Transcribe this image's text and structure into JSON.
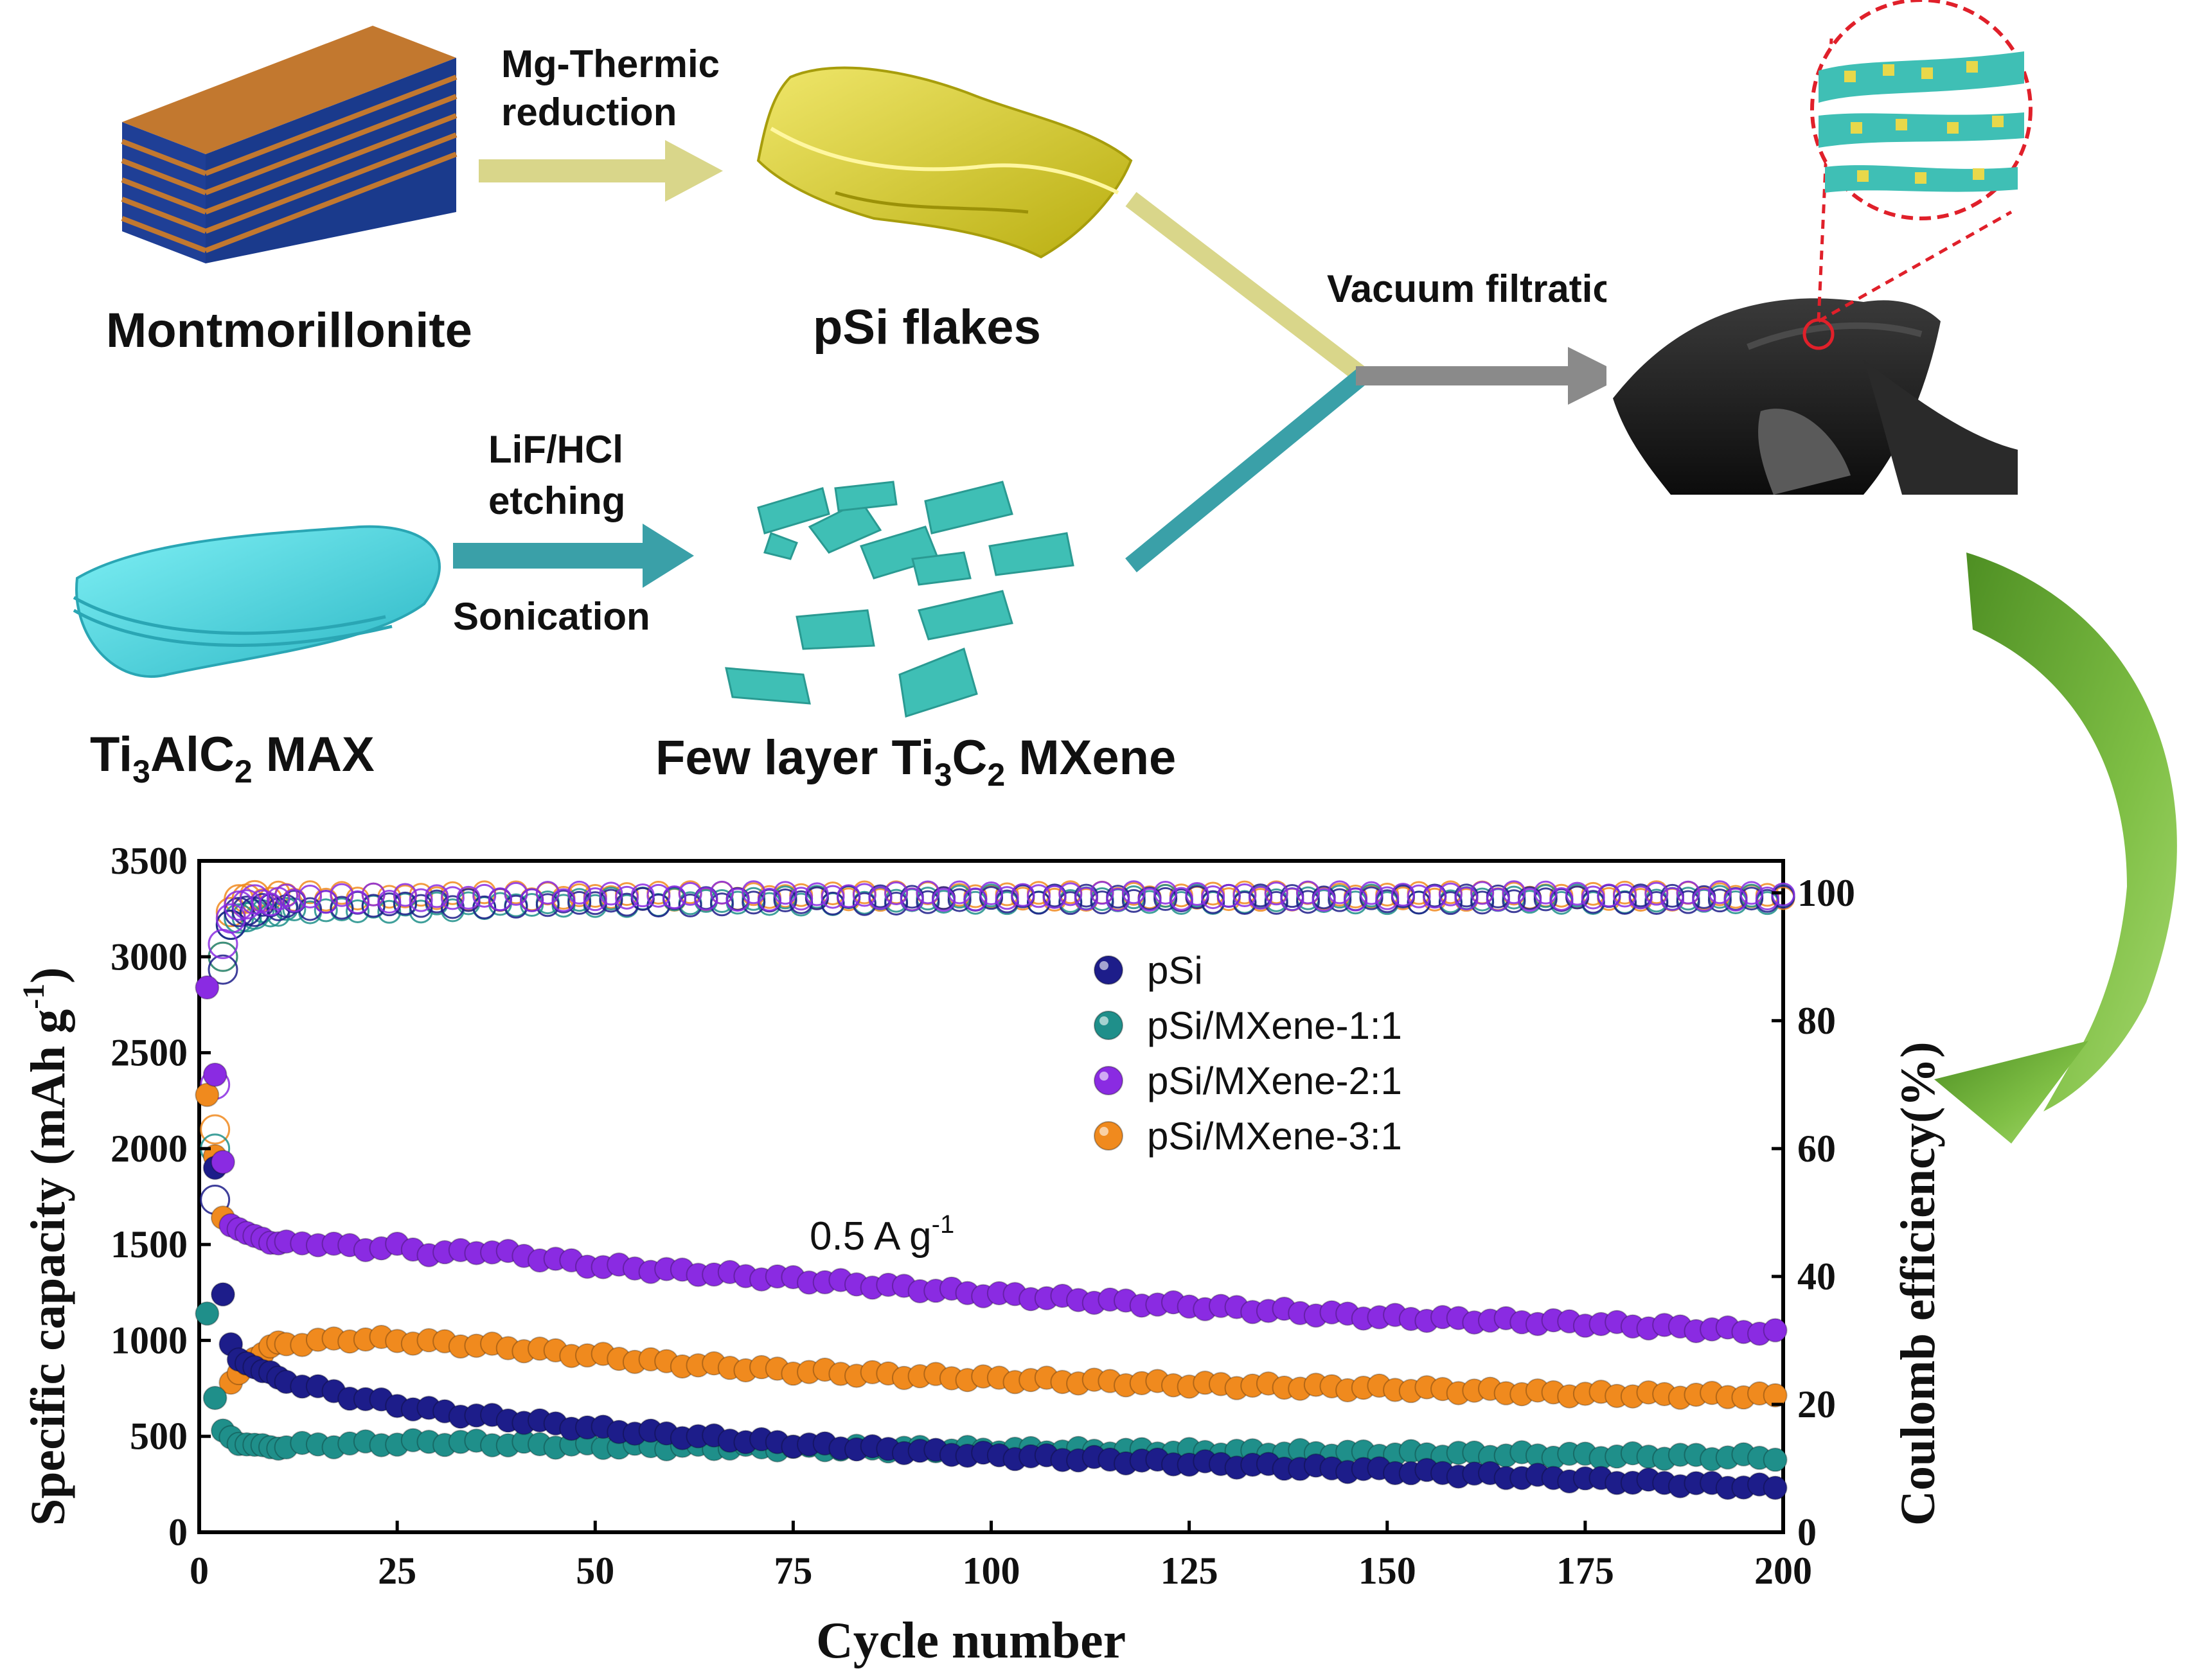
{
  "schematic": {
    "montmorillonite_label": "Montmorillonite",
    "step1_line1": "Mg-Thermic",
    "step1_line2": "reduction",
    "psi_label": "pSi flakes",
    "step2_line1": "LiF/HCl",
    "step2_line2": "etching",
    "step2_line3": "Sonication",
    "max_label_main": "Ti",
    "max_label_sub1": "3",
    "max_label_mid": "AlC",
    "max_label_sub2": "2",
    "max_label_end": " MAX",
    "mxene_prefix": "Few layer Ti",
    "mxene_sub1": "3",
    "mxene_mid": "C",
    "mxene_sub2": "2",
    "mxene_end": " MXene",
    "filtration_label": "Vacuum filtration"
  },
  "colors": {
    "montmorillonite_top": "#c2782f",
    "montmorillonite_layer": "#1a3a8c",
    "psi_yellow": "#d8cf2a",
    "arrow_khaki": "#d9d68a",
    "arrow_teal": "#3aa0a8",
    "mxene_teal": "#3fbfb5",
    "max_cyan": "#45d2dc",
    "film_black": "#1c1c1c",
    "arrow_gray": "#8a8a8a",
    "curved_arrow_green": "#6aab3a",
    "zoom_red": "#e0202a",
    "series_psi": "#1d1d8a",
    "series_11": "#1f8f8a",
    "series_21": "#8a2be2",
    "series_31": "#f08a1e"
  },
  "chart_data": {
    "type": "scatter",
    "title": "",
    "annotation_main": "0.5 A g",
    "annotation_sup": "-1",
    "xlabel": "Cycle number",
    "ylabel_main": "Specific capacity (mAh g",
    "ylabel_sup": "-1",
    "ylabel_end": ")",
    "y2label": "Coulomb efficiency(%)",
    "xlim": [
      0,
      200
    ],
    "ylim": [
      0,
      3500
    ],
    "y2lim": [
      0,
      105
    ],
    "x_ticks": [
      "0",
      "25",
      "50",
      "75",
      "100",
      "125",
      "150",
      "175",
      "200"
    ],
    "x_tick_values": [
      0,
      25,
      50,
      75,
      100,
      125,
      150,
      175,
      200
    ],
    "y_ticks": [
      "0",
      "500",
      "1000",
      "1500",
      "2000",
      "2500",
      "3000",
      "3500"
    ],
    "y_tick_values": [
      0,
      500,
      1000,
      1500,
      2000,
      2500,
      3000,
      3500
    ],
    "y2_ticks": [
      "0",
      "20",
      "40",
      "60",
      "80",
      "100"
    ],
    "y2_tick_values": [
      0,
      20,
      40,
      60,
      80,
      100
    ],
    "legend_position": "upper-center",
    "series": [
      {
        "name": "pSi",
        "color_key": "series_psi",
        "capacity": [
          [
            2,
            1900
          ],
          [
            3,
            1240
          ],
          [
            4,
            980
          ],
          [
            5,
            900
          ],
          [
            10,
            800
          ],
          [
            20,
            700
          ],
          [
            30,
            630
          ],
          [
            50,
            540
          ],
          [
            75,
            460
          ],
          [
            100,
            400
          ],
          [
            125,
            360
          ],
          [
            150,
            320
          ],
          [
            175,
            275
          ],
          [
            200,
            230
          ]
        ],
        "ce": [
          [
            2,
            52
          ],
          [
            3,
            88
          ],
          [
            4,
            95
          ],
          [
            5,
            97
          ],
          [
            10,
            98
          ],
          [
            50,
            98.5
          ],
          [
            100,
            99
          ],
          [
            150,
            99
          ],
          [
            200,
            99
          ]
        ]
      },
      {
        "name": "pSi/MXene-1:1",
        "color_key": "series_11",
        "capacity": [
          [
            1,
            1140
          ],
          [
            2,
            700
          ],
          [
            3,
            530
          ],
          [
            5,
            460
          ],
          [
            10,
            450
          ],
          [
            20,
            460
          ],
          [
            30,
            470
          ],
          [
            50,
            450
          ],
          [
            75,
            440
          ],
          [
            100,
            430
          ],
          [
            125,
            420
          ],
          [
            150,
            410
          ],
          [
            175,
            400
          ],
          [
            200,
            390
          ]
        ],
        "ce": [
          [
            2,
            60
          ],
          [
            3,
            90
          ],
          [
            4,
            95
          ],
          [
            5,
            96
          ],
          [
            10,
            97
          ],
          [
            50,
            98.5
          ],
          [
            100,
            99
          ],
          [
            150,
            99
          ],
          [
            200,
            99
          ]
        ]
      },
      {
        "name": "pSi/MXene-2:1",
        "color_key": "series_21",
        "capacity": [
          [
            1,
            2840
          ],
          [
            3,
            1930
          ],
          [
            4,
            1600
          ],
          [
            6,
            1560
          ],
          [
            10,
            1500
          ],
          [
            15,
            1510
          ],
          [
            20,
            1480
          ],
          [
            25,
            1490
          ],
          [
            30,
            1450
          ],
          [
            36,
            1470
          ],
          [
            50,
            1390
          ],
          [
            75,
            1320
          ],
          [
            100,
            1240
          ],
          [
            125,
            1180
          ],
          [
            150,
            1120
          ],
          [
            175,
            1090
          ],
          [
            200,
            1040
          ]
        ],
        "ce": [
          [
            2,
            70
          ],
          [
            3,
            92
          ],
          [
            4,
            96
          ],
          [
            5,
            98
          ],
          [
            10,
            99
          ],
          [
            50,
            99.5
          ],
          [
            100,
            99.5
          ],
          [
            150,
            99.5
          ],
          [
            200,
            99.5
          ]
        ]
      },
      {
        "name": "pSi/MXene-3:1",
        "color_key": "series_31",
        "capacity": [
          [
            1,
            2280
          ],
          [
            3,
            1640
          ],
          [
            4,
            780
          ],
          [
            6,
            880
          ],
          [
            10,
            980
          ],
          [
            20,
            1010
          ],
          [
            30,
            990
          ],
          [
            40,
            960
          ],
          [
            50,
            920
          ],
          [
            60,
            880
          ],
          [
            75,
            840
          ],
          [
            100,
            800
          ],
          [
            125,
            770
          ],
          [
            150,
            750
          ],
          [
            175,
            720
          ],
          [
            200,
            710
          ]
        ],
        "ce": [
          [
            2,
            63
          ],
          [
            3,
            90
          ],
          [
            4,
            97
          ],
          [
            5,
            99
          ],
          [
            10,
            99.5
          ],
          [
            50,
            99.5
          ],
          [
            100,
            99.5
          ],
          [
            150,
            99.5
          ],
          [
            200,
            99.5
          ]
        ]
      }
    ]
  }
}
